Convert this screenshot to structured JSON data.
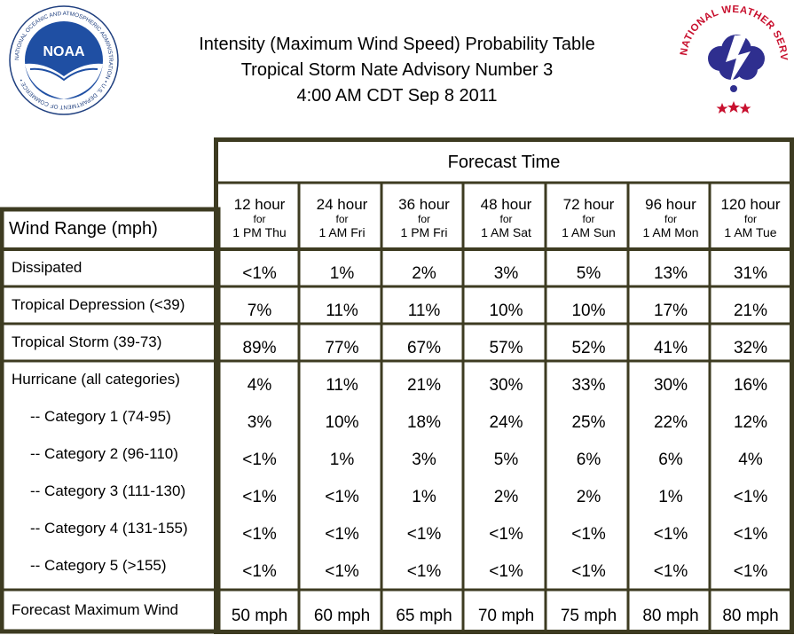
{
  "header": {
    "title_lines": [
      "Intensity (Maximum Wind Speed) Probability Table",
      "Tropical Storm Nate Advisory Number 3",
      "4:00 AM CDT Sep 8 2011"
    ]
  },
  "logos": {
    "noaa": {
      "text": "NOAA",
      "ring_text": "NATIONAL OCEANIC AND ATMOSPHERIC ADMINISTRATION • U.S. DEPARTMENT OF COMMERCE •",
      "colors": {
        "ring": "#ffffff",
        "sky": "#1f4fa3",
        "sea": "#ffffff"
      }
    },
    "nws": {
      "ring_text": "NATIONAL WEATHER SERVICE",
      "colors": {
        "text": "#c8102e",
        "cloud": "#2f2f8f",
        "bolt": "#ffffff",
        "stars": "#c8102e"
      }
    }
  },
  "table": {
    "forecast_time_label": "Forecast Time",
    "row_header_label": "Wind Range (mph)",
    "columns": [
      {
        "hours": "12 hour",
        "for": "for",
        "when": "1 PM Thu"
      },
      {
        "hours": "24 hour",
        "for": "for",
        "when": "1 AM Fri"
      },
      {
        "hours": "36 hour",
        "for": "for",
        "when": "1 PM Fri"
      },
      {
        "hours": "48 hour",
        "for": "for",
        "when": "1 AM Sat"
      },
      {
        "hours": "72 hour",
        "for": "for",
        "when": "1 AM Sun"
      },
      {
        "hours": "96 hour",
        "for": "for",
        "when": "1 AM Mon"
      },
      {
        "hours": "120 hour",
        "for": "for",
        "when": "1 AM Tue"
      }
    ],
    "rows": [
      {
        "label": "Dissipated",
        "values": [
          "<1%",
          "1%",
          "2%",
          "3%",
          "5%",
          "13%",
          "31%"
        ]
      },
      {
        "label": "Tropical Depression (<39)",
        "values": [
          "7%",
          "11%",
          "11%",
          "10%",
          "10%",
          "17%",
          "21%"
        ]
      },
      {
        "label": "Tropical Storm (39-73)",
        "values": [
          "89%",
          "77%",
          "67%",
          "57%",
          "52%",
          "41%",
          "32%"
        ]
      },
      {
        "label": "Hurricane (all categories)",
        "values": [
          "4%",
          "11%",
          "21%",
          "30%",
          "33%",
          "30%",
          "16%"
        ]
      },
      {
        "label": "-- Category 1 (74-95)",
        "values": [
          "3%",
          "10%",
          "18%",
          "24%",
          "25%",
          "22%",
          "12%"
        ]
      },
      {
        "label": "-- Category 2 (96-110)",
        "values": [
          "<1%",
          "1%",
          "3%",
          "5%",
          "6%",
          "6%",
          "4%"
        ]
      },
      {
        "label": "-- Category 3 (111-130)",
        "values": [
          "<1%",
          "<1%",
          "1%",
          "2%",
          "2%",
          "1%",
          "<1%"
        ]
      },
      {
        "label": "-- Category 4 (131-155)",
        "values": [
          "<1%",
          "<1%",
          "<1%",
          "<1%",
          "<1%",
          "<1%",
          "<1%"
        ]
      },
      {
        "label": "-- Category 5 (>155)",
        "values": [
          "<1%",
          "<1%",
          "<1%",
          "<1%",
          "<1%",
          "<1%",
          "<1%"
        ]
      },
      {
        "label": "Forecast Maximum Wind",
        "values": [
          "50 mph",
          "60 mph",
          "65 mph",
          "70 mph",
          "75 mph",
          "80 mph",
          "80 mph"
        ]
      }
    ]
  }
}
